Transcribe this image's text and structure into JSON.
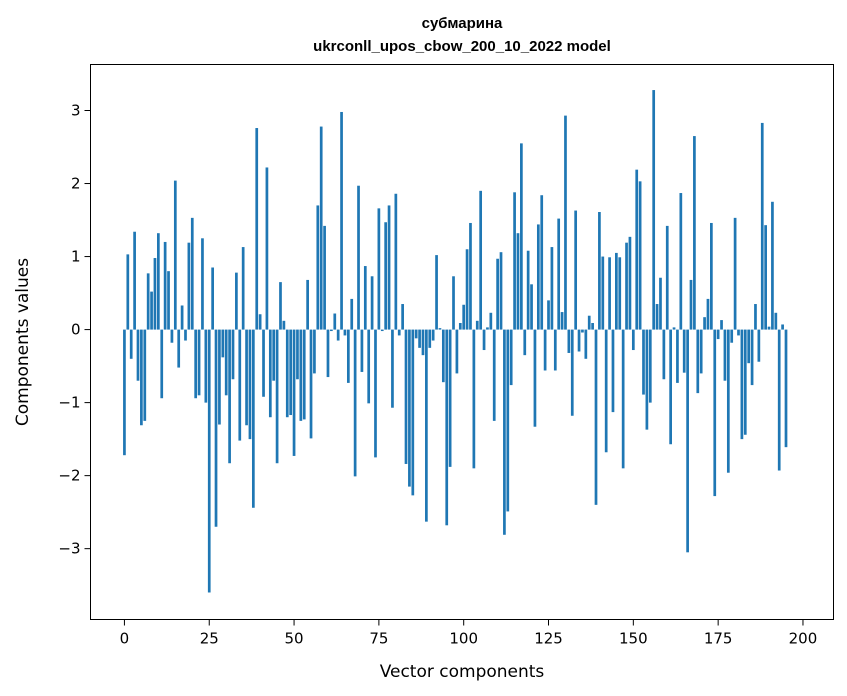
{
  "chart_data": {
    "type": "bar",
    "title_line1": "субмарина",
    "title_line2": "ukrconll_upos_cbow_200_10_2022 model",
    "xlabel": "Vector components",
    "ylabel": "Components values",
    "xlim": [
      -10,
      209
    ],
    "ylim": [
      -3.97,
      3.63
    ],
    "xticks": [
      0,
      25,
      50,
      75,
      100,
      125,
      150,
      175,
      200
    ],
    "yticks": [
      -3,
      -2,
      -1,
      0,
      1,
      2,
      3
    ],
    "bar_color": "#1f77b4",
    "grid": false,
    "values": [
      -1.72,
      1.03,
      -0.4,
      1.34,
      -0.7,
      -1.31,
      -1.25,
      0.77,
      0.52,
      0.98,
      1.32,
      -0.94,
      1.2,
      0.8,
      -0.18,
      2.04,
      -0.52,
      0.33,
      -0.15,
      1.19,
      1.53,
      -0.94,
      -0.9,
      1.25,
      -1.0,
      -3.6,
      0.85,
      -2.7,
      -1.3,
      -0.38,
      -0.9,
      -1.83,
      -0.68,
      0.78,
      -1.52,
      1.13,
      -1.31,
      -1.5,
      -2.44,
      2.76,
      0.21,
      -0.92,
      2.22,
      -1.2,
      -0.7,
      -1.83,
      0.65,
      0.12,
      -1.2,
      -1.17,
      -1.73,
      -0.68,
      -1.25,
      -1.23,
      0.68,
      -1.49,
      -0.6,
      1.7,
      2.78,
      1.42,
      -0.65,
      -0.02,
      0.22,
      -0.15,
      2.98,
      -0.08,
      -0.73,
      0.42,
      -2.01,
      1.97,
      -0.58,
      0.87,
      -1.01,
      0.73,
      -1.75,
      1.66,
      -0.02,
      1.47,
      1.7,
      -1.07,
      1.86,
      -0.08,
      0.35,
      -1.84,
      -2.15,
      -2.27,
      -0.12,
      -0.25,
      -0.35,
      -2.63,
      -0.25,
      -0.15,
      1.02,
      0.02,
      -0.72,
      -2.68,
      -1.88,
      0.73,
      -0.6,
      0.09,
      0.34,
      1.1,
      1.46,
      -1.9,
      0.12,
      1.9,
      -0.28,
      0.03,
      0.23,
      -1.25,
      0.97,
      1.06,
      -2.81,
      -2.49,
      -0.76,
      1.88,
      1.32,
      2.55,
      -0.35,
      1.08,
      0.62,
      -1.33,
      1.44,
      1.84,
      -0.56,
      0.4,
      1.13,
      -0.56,
      1.52,
      0.24,
      2.93,
      -0.32,
      -1.18,
      1.63,
      -0.3,
      -0.04,
      -0.4,
      0.19,
      0.09,
      -2.4,
      1.61,
      1.0,
      -1.68,
      0.99,
      -1.13,
      1.05,
      0.99,
      -1.9,
      1.19,
      1.27,
      -0.28,
      2.19,
      2.03,
      -0.89,
      -1.37,
      -1.0,
      3.28,
      0.35,
      0.71,
      -0.68,
      1.42,
      -1.57,
      0.03,
      -0.73,
      1.87,
      -0.59,
      -3.05,
      0.68,
      2.65,
      -0.87,
      -0.6,
      0.17,
      0.42,
      1.46,
      -2.28,
      -0.13,
      0.13,
      -0.7,
      -1.96,
      -0.18,
      1.53,
      -0.08,
      -1.5,
      -1.44,
      -0.46,
      -0.76,
      0.35,
      -0.44,
      2.83,
      1.43,
      0.04,
      1.75,
      0.23,
      -1.93,
      0.07,
      -1.61
    ]
  }
}
